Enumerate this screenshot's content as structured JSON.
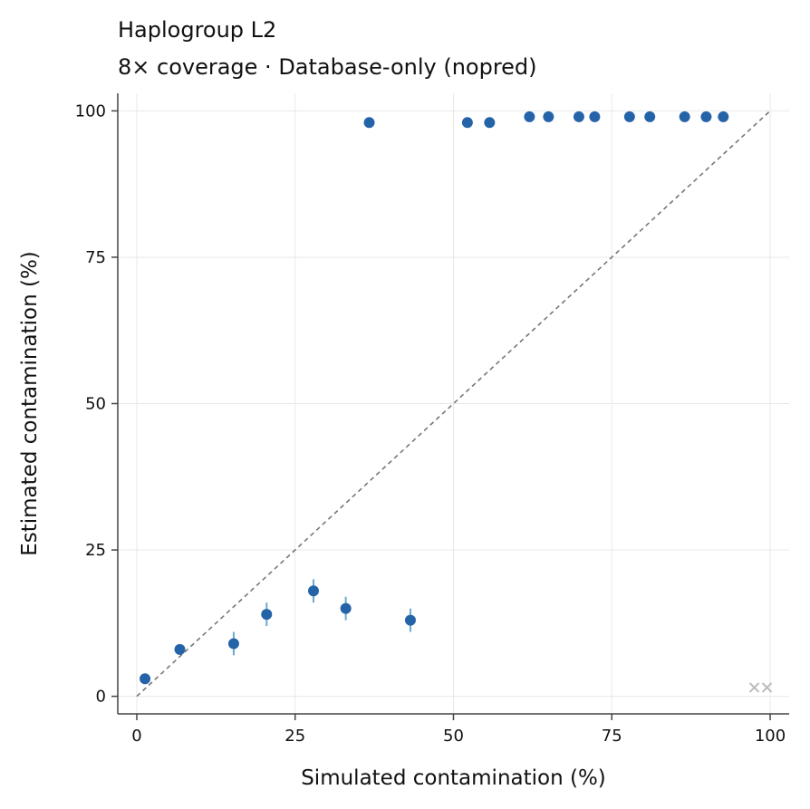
{
  "chart_data": {
    "type": "scatter",
    "title": "Haplogroup L2",
    "subtitle": "8× coverage  ·  Database-only (nopred)",
    "xlabel": "Simulated contamination (%)",
    "ylabel": "Estimated contamination (%)",
    "xlim": [
      -3,
      103
    ],
    "ylim": [
      -3,
      103
    ],
    "xticks": [
      0,
      25,
      50,
      75,
      100
    ],
    "yticks": [
      0,
      25,
      50,
      75,
      100
    ],
    "grid": true,
    "reference_line": {
      "from": [
        0,
        0
      ],
      "to": [
        100,
        100
      ],
      "style": "dashed",
      "color": "#777777"
    },
    "colors": {
      "points": "#2463a8",
      "errorbars": "#6aaad0",
      "failed": "#bbbbbb",
      "axis": "#444444",
      "grid": "#e8e8e8"
    },
    "series": [
      {
        "points": [
          {
            "x": 1.3,
            "y": 3,
            "err": 0.6
          },
          {
            "x": 6.8,
            "y": 8,
            "err": 0.8
          },
          {
            "x": 15.3,
            "y": 9,
            "err": 2
          },
          {
            "x": 20.5,
            "y": 14,
            "err": 2
          },
          {
            "x": 27.9,
            "y": 18,
            "err": 2
          },
          {
            "x": 33.0,
            "y": 15,
            "err": 2
          },
          {
            "x": 43.2,
            "y": 13,
            "err": 2
          },
          {
            "x": 36.7,
            "y": 98,
            "err": 0
          },
          {
            "x": 52.2,
            "y": 98,
            "err": 0
          },
          {
            "x": 55.7,
            "y": 98,
            "err": 0
          },
          {
            "x": 62.0,
            "y": 99,
            "err": 0
          },
          {
            "x": 65.0,
            "y": 99,
            "err": 0
          },
          {
            "x": 69.8,
            "y": 99,
            "err": 0
          },
          {
            "x": 72.3,
            "y": 99,
            "err": 0
          },
          {
            "x": 77.8,
            "y": 99,
            "err": 0
          },
          {
            "x": 81.0,
            "y": 99,
            "err": 0
          },
          {
            "x": 86.5,
            "y": 99,
            "err": 0
          },
          {
            "x": 89.9,
            "y": 99,
            "err": 0
          },
          {
            "x": 92.6,
            "y": 99,
            "err": 0
          }
        ]
      }
    ],
    "failed_points": [
      {
        "x": 97.5,
        "y": 1.5
      },
      {
        "x": 99.5,
        "y": 1.5
      }
    ]
  }
}
